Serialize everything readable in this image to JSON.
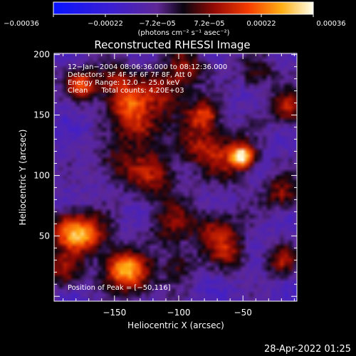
{
  "chart_data": {
    "type": "heatmap",
    "title": "Reconstructed RHESSI Image",
    "xlabel": "Heliocentric X (arcsec)",
    "ylabel": "Heliocentric Y (arcsec)",
    "xlim": [
      -197,
      -8
    ],
    "ylim": [
      -4,
      201
    ],
    "x_ticks": [
      -150,
      -100,
      -50
    ],
    "x_tick_labels": [
      "−150",
      "−100",
      "−50"
    ],
    "y_ticks": [
      50,
      100,
      150,
      200
    ],
    "y_tick_labels": [
      "50",
      "100",
      "150",
      "200"
    ],
    "colorbar": {
      "range": [
        -0.00036,
        0.00036
      ],
      "tick_labels": [
        "−0.00036",
        "−0.00022",
        "−7.2e−05",
        "7.2e−05",
        "0.00022",
        "0.00036"
      ],
      "units_label": "(photons cm⁻² s⁻¹ asec⁻²)"
    },
    "annotations": [
      "12−Jan−2004 08:06:36.000 to 08:12:36.000",
      "Detectors: 3F 4F 5F 6F 7F 8F, Att 0",
      "Energy Range: 12.0 − 25.0 keV",
      "Clean      Total counts: 4.20E+03"
    ],
    "peak_label": "Position of Peak = [−50,116]",
    "peak_position": [
      -50,
      116
    ],
    "blobs": [
      {
        "x": -50,
        "y": 116,
        "sigma": 6,
        "amp": 1.0
      },
      {
        "x": -60,
        "y": 115,
        "sigma": 14,
        "amp": 0.55
      },
      {
        "x": -185,
        "y": 55,
        "sigma": 11,
        "amp": 0.8
      },
      {
        "x": -170,
        "y": 50,
        "sigma": 12,
        "amp": 0.65
      },
      {
        "x": -190,
        "y": 20,
        "sigma": 10,
        "amp": 0.55
      },
      {
        "x": -145,
        "y": 25,
        "sigma": 10,
        "amp": 0.75
      },
      {
        "x": -135,
        "y": 15,
        "sigma": 12,
        "amp": 0.6
      },
      {
        "x": -175,
        "y": 175,
        "sigma": 9,
        "amp": 0.75
      },
      {
        "x": -150,
        "y": 180,
        "sigma": 10,
        "amp": 0.55
      },
      {
        "x": -140,
        "y": 160,
        "sigma": 11,
        "amp": 0.7
      },
      {
        "x": -130,
        "y": 140,
        "sigma": 12,
        "amp": 0.65
      },
      {
        "x": -110,
        "y": 170,
        "sigma": 13,
        "amp": 0.6
      },
      {
        "x": -95,
        "y": 190,
        "sigma": 10,
        "amp": 0.5
      },
      {
        "x": -80,
        "y": 150,
        "sigma": 9,
        "amp": 0.8
      },
      {
        "x": -85,
        "y": 125,
        "sigma": 12,
        "amp": 0.5
      },
      {
        "x": -120,
        "y": 100,
        "sigma": 14,
        "amp": 0.55
      },
      {
        "x": -150,
        "y": 110,
        "sigma": 12,
        "amp": 0.4
      },
      {
        "x": -105,
        "y": 60,
        "sigma": 14,
        "amp": 0.45
      },
      {
        "x": -70,
        "y": 55,
        "sigma": 12,
        "amp": 0.55
      },
      {
        "x": -60,
        "y": 35,
        "sigma": 10,
        "amp": 0.5
      },
      {
        "x": -15,
        "y": 155,
        "sigma": 10,
        "amp": 0.65
      },
      {
        "x": -20,
        "y": 85,
        "sigma": 10,
        "amp": 0.55
      },
      {
        "x": -20,
        "y": 30,
        "sigma": 9,
        "amp": 0.55
      },
      {
        "x": -40,
        "y": 185,
        "sigma": 10,
        "amp": 0.45
      },
      {
        "x": -100,
        "y": 25,
        "sigma": 10,
        "amp": 0.4
      }
    ]
  },
  "footer": {
    "timestamp": "28-Apr-2022 01:25"
  }
}
